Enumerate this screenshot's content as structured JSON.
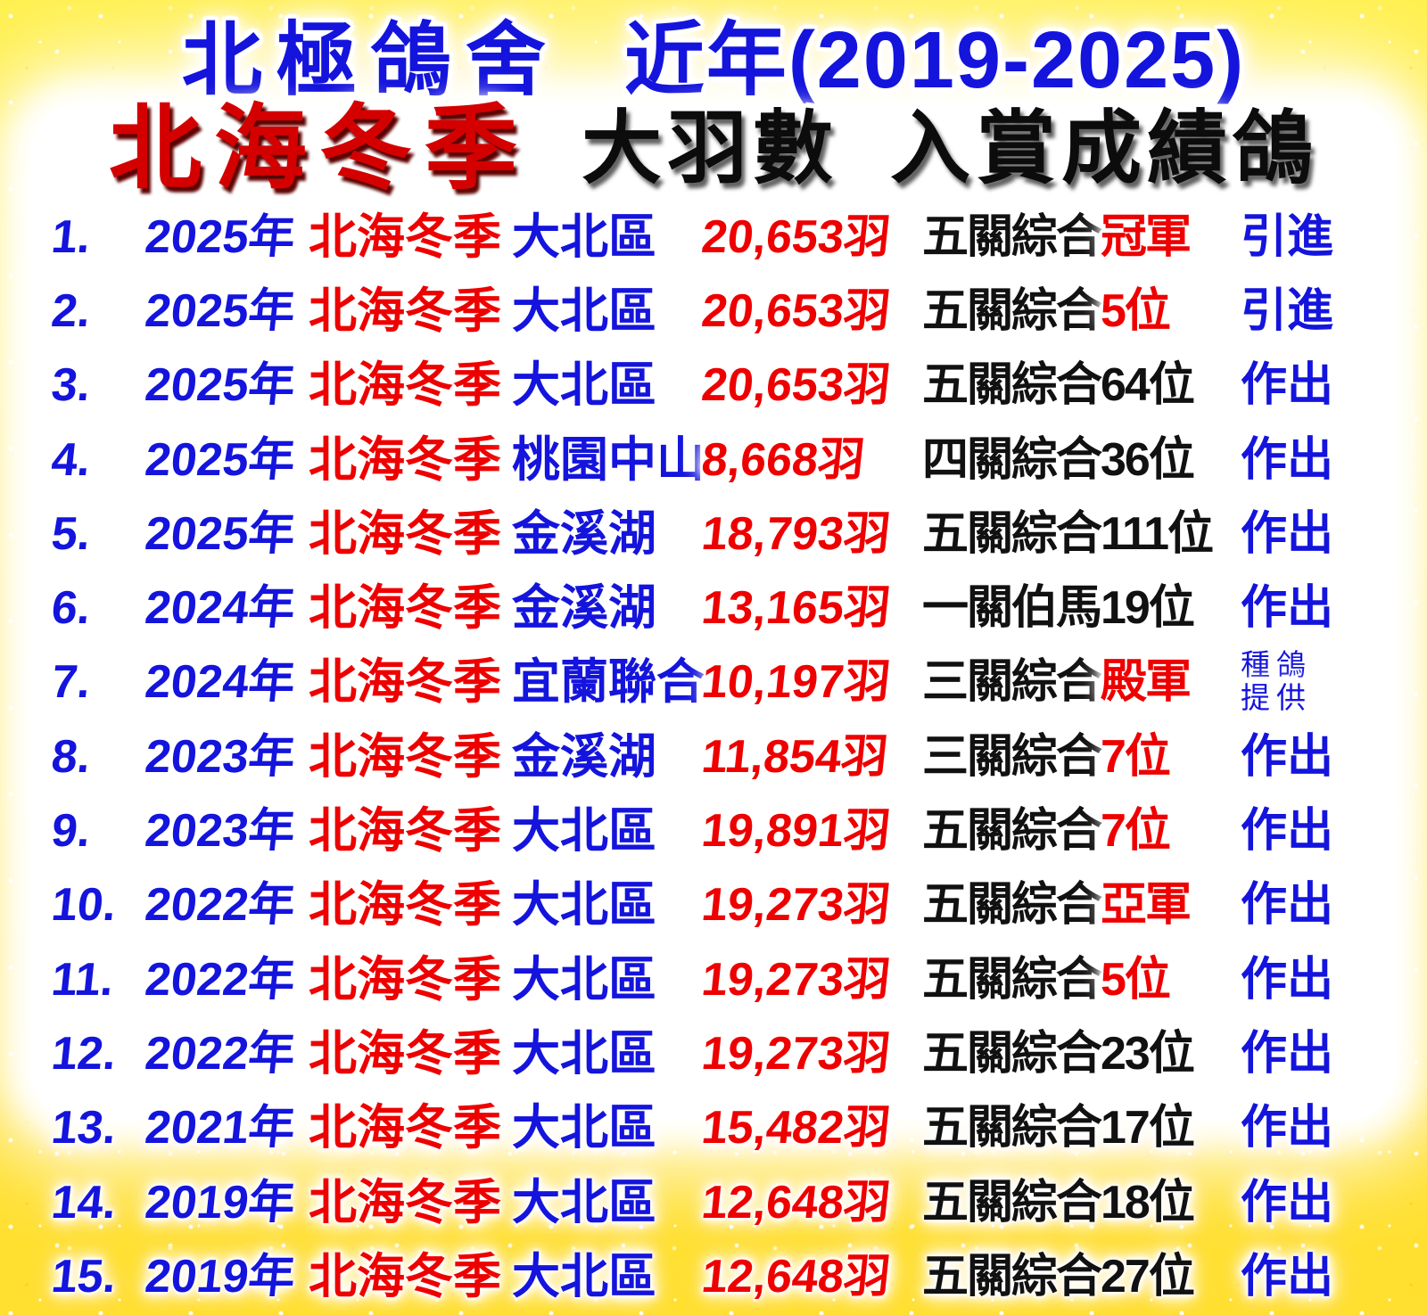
{
  "poster": {
    "title_line1": {
      "loft_name": "北極鴿舍",
      "period": "近年(2019-2025)"
    },
    "title_line2": {
      "series_name": "北海冬季",
      "subtitle_part1": "大羽數",
      "subtitle_part2": "入賞成績鴿"
    },
    "colors": {
      "blue_text": "#1414dd",
      "red_text": "#ee0000",
      "black_text": "#111111",
      "title_red": "#d40000",
      "background_yellow": "#ffe440",
      "paper_white": "#ffffff"
    },
    "rows": [
      {
        "num": "1.",
        "year": "2025年",
        "series": "北海冬季",
        "location": "大北區",
        "count": "20,653羽",
        "award_black": "五關綜合",
        "award_red": "冠軍",
        "source": "引進"
      },
      {
        "num": "2.",
        "year": "2025年",
        "series": "北海冬季",
        "location": "大北區",
        "count": "20,653羽",
        "award_black": "五關綜合",
        "award_red": "5位",
        "source": "引進"
      },
      {
        "num": "3.",
        "year": "2025年",
        "series": "北海冬季",
        "location": "大北區",
        "count": "20,653羽",
        "award_black": "五關綜合64位",
        "award_red": "",
        "source": "作出"
      },
      {
        "num": "4.",
        "year": "2025年",
        "series": "北海冬季",
        "location": "桃園中山",
        "count": "8,668羽",
        "award_black": "四關綜合36位",
        "award_red": "",
        "source": "作出"
      },
      {
        "num": "5.",
        "year": "2025年",
        "series": "北海冬季",
        "location": "金溪湖",
        "count": "18,793羽",
        "award_black": "五關綜合111位",
        "award_red": "",
        "source": "作出"
      },
      {
        "num": "6.",
        "year": "2024年",
        "series": "北海冬季",
        "location": "金溪湖",
        "count": "13,165羽",
        "award_black": "一關伯馬19位",
        "award_red": "",
        "source": "作出"
      },
      {
        "num": "7.",
        "year": "2024年",
        "series": "北海冬季",
        "location": "宜蘭聯合",
        "count": "10,197羽",
        "award_black": "三關綜合",
        "award_red": "殿軍",
        "source": [
          "種鴿",
          "提供"
        ]
      },
      {
        "num": "8.",
        "year": "2023年",
        "series": "北海冬季",
        "location": "金溪湖",
        "count": "11,854羽",
        "award_black": "三關綜合",
        "award_red": "7位",
        "source": "作出"
      },
      {
        "num": "9.",
        "year": "2023年",
        "series": "北海冬季",
        "location": "大北區",
        "count": "19,891羽",
        "award_black": "五關綜合",
        "award_red": "7位",
        "source": "作出"
      },
      {
        "num": "10.",
        "year": "2022年",
        "series": "北海冬季",
        "location": "大北區",
        "count": "19,273羽",
        "award_black": "五關綜合",
        "award_red": "亞軍",
        "source": "作出"
      },
      {
        "num": "11.",
        "year": "2022年",
        "series": "北海冬季",
        "location": "大北區",
        "count": "19,273羽",
        "award_black": "五關綜合",
        "award_red": "5位",
        "source": "作出"
      },
      {
        "num": "12.",
        "year": "2022年",
        "series": "北海冬季",
        "location": "大北區",
        "count": "19,273羽",
        "award_black": "五關綜合23位",
        "award_red": "",
        "source": "作出"
      },
      {
        "num": "13.",
        "year": "2021年",
        "series": "北海冬季",
        "location": "大北區",
        "count": "15,482羽",
        "award_black": "五關綜合17位",
        "award_red": "",
        "source": "作出"
      },
      {
        "num": "14.",
        "year": "2019年",
        "series": "北海冬季",
        "location": "大北區",
        "count": "12,648羽",
        "award_black": "五關綜合18位",
        "award_red": "",
        "source": "作出"
      },
      {
        "num": "15.",
        "year": "2019年",
        "series": "北海冬季",
        "location": "大北區",
        "count": "12,648羽",
        "award_black": "五關綜合27位",
        "award_red": "",
        "source": "作出"
      }
    ]
  }
}
